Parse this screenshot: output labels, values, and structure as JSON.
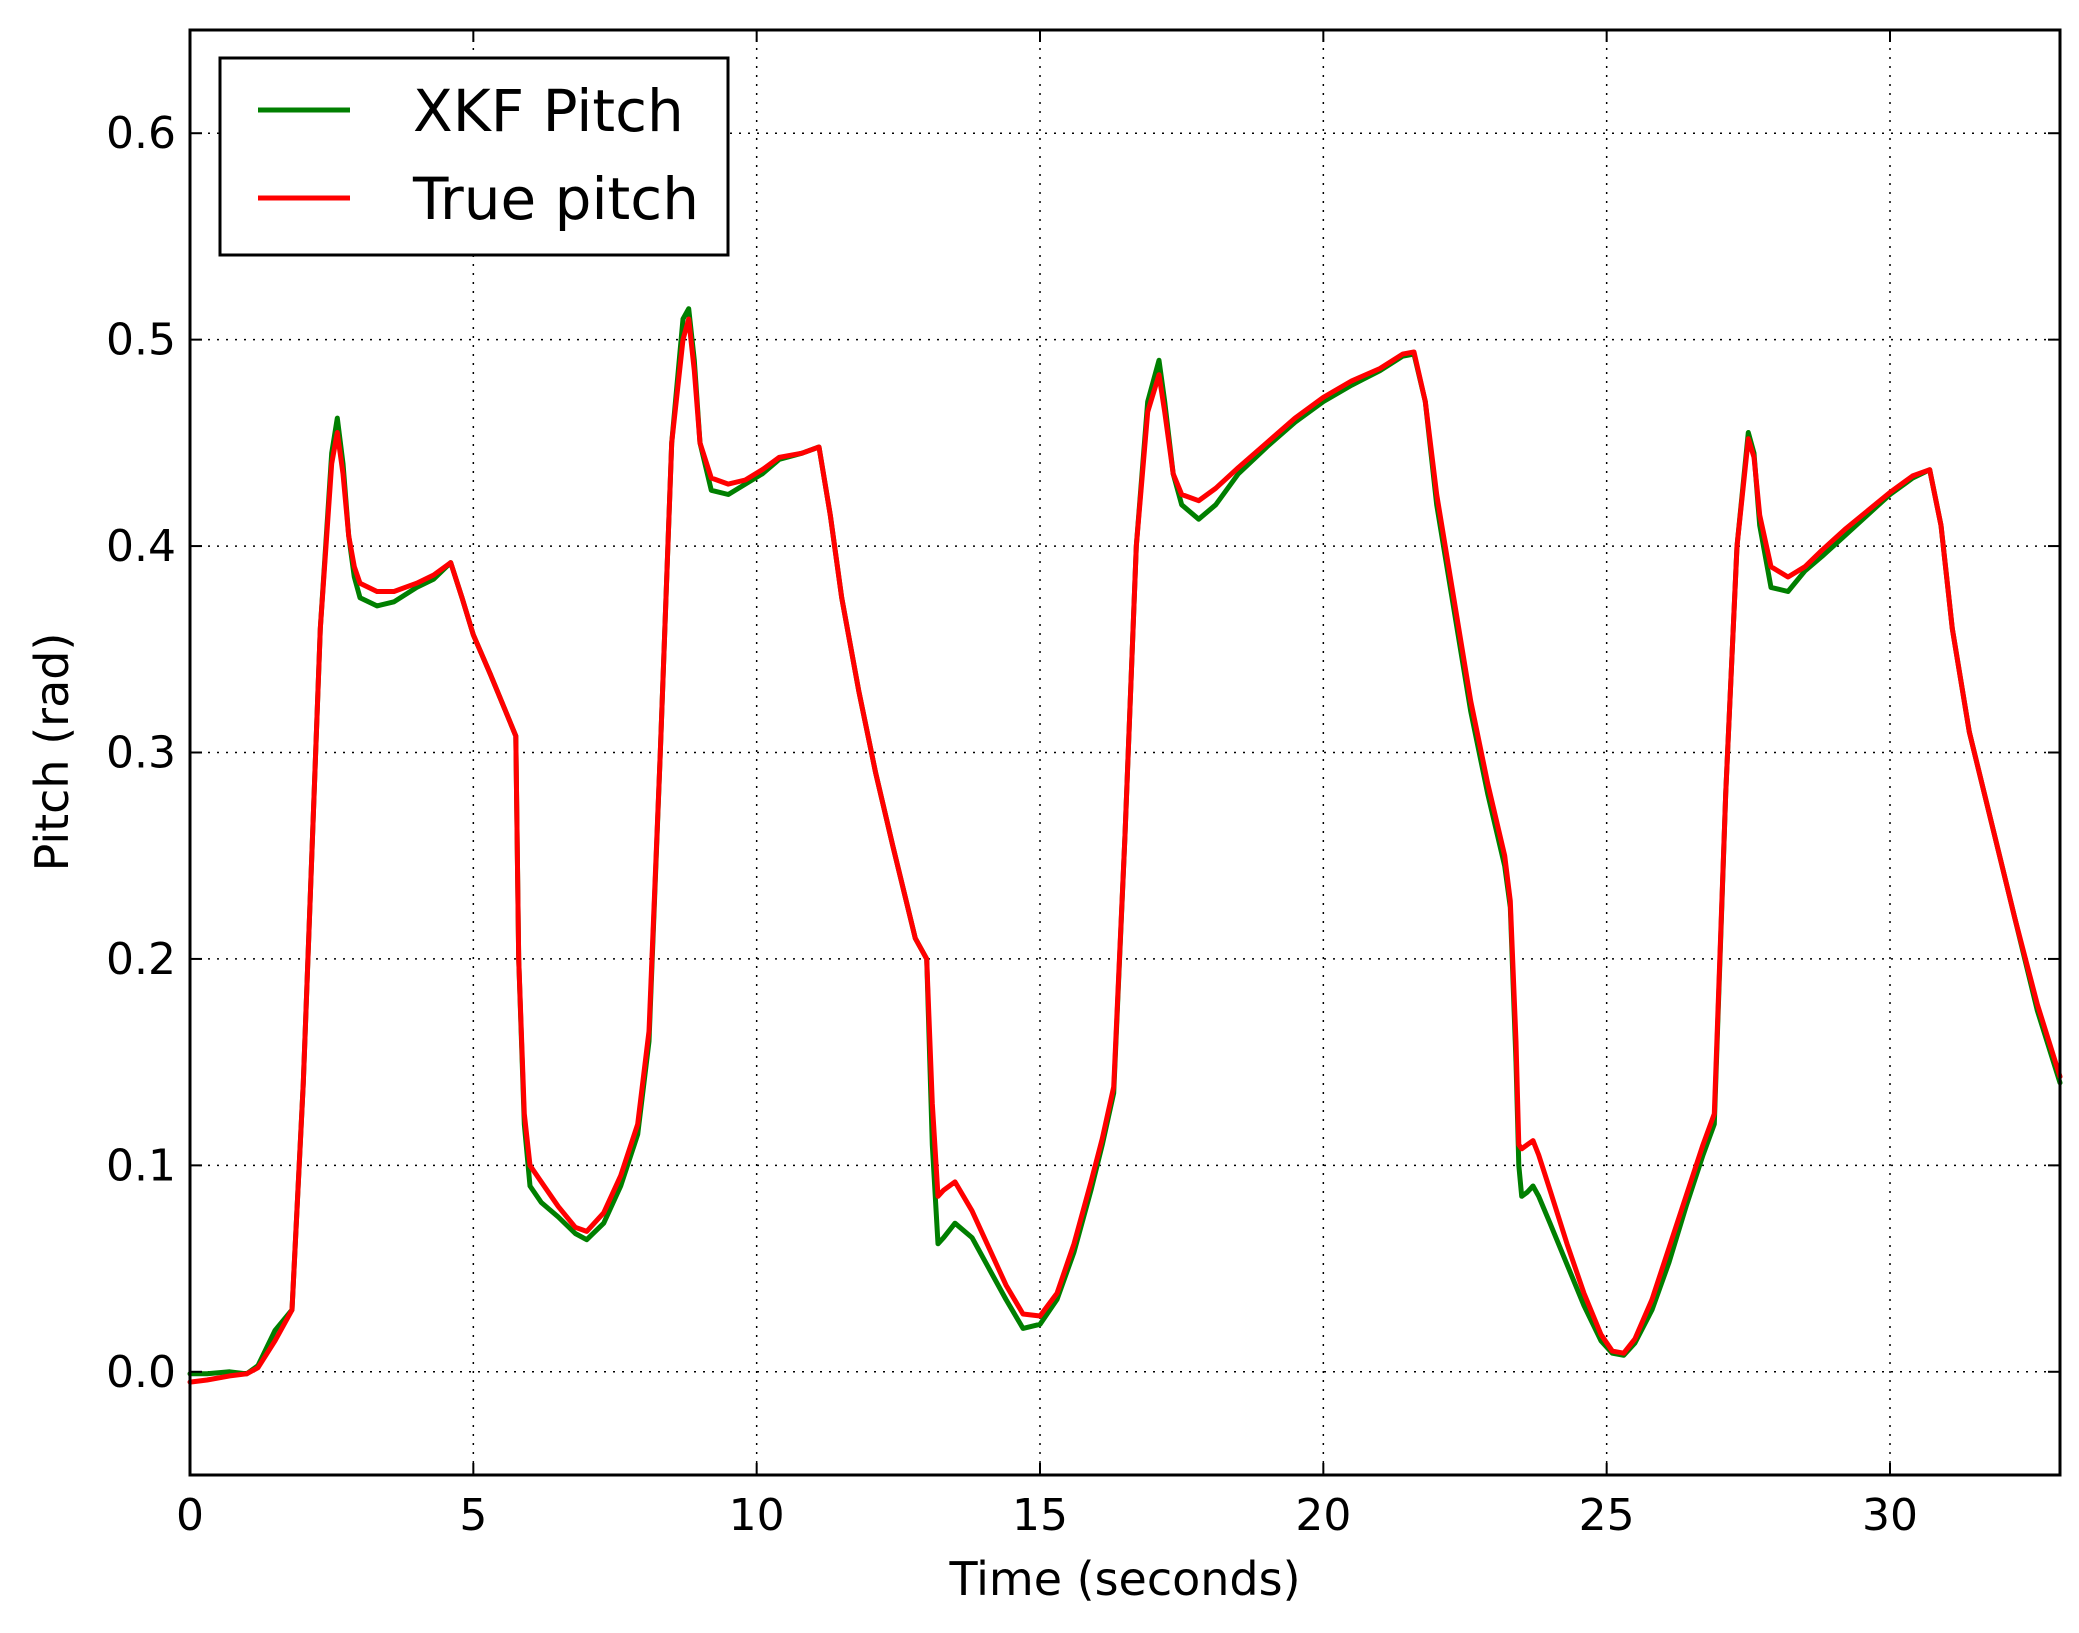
{
  "chart_data": {
    "type": "line",
    "xlabel": "Time (seconds)",
    "ylabel": "Pitch (rad)",
    "xlim": [
      0,
      33
    ],
    "ylim": [
      -0.05,
      0.65
    ],
    "xticks": [
      0,
      5,
      10,
      15,
      20,
      25,
      30
    ],
    "xtick_labels": [
      "0",
      "5",
      "10",
      "15",
      "20",
      "25",
      "30"
    ],
    "yticks": [
      0.0,
      0.1,
      0.2,
      0.3,
      0.4,
      0.5,
      0.6
    ],
    "ytick_labels": [
      "0.0",
      "0.1",
      "0.2",
      "0.3",
      "0.4",
      "0.5",
      "0.6"
    ],
    "grid": true,
    "legend_position": "top-left",
    "series": [
      {
        "name": "XKF Pitch",
        "color": "#007f00",
        "x": [
          0,
          0.3,
          0.7,
          1.0,
          1.2,
          1.5,
          1.8,
          2.0,
          2.3,
          2.5,
          2.6,
          2.7,
          2.8,
          2.9,
          3.0,
          3.3,
          3.6,
          4.0,
          4.3,
          4.6,
          4.8,
          5.0,
          5.3,
          5.6,
          5.75,
          5.8,
          5.9,
          6.0,
          6.2,
          6.5,
          6.8,
          7.0,
          7.3,
          7.6,
          7.9,
          8.1,
          8.3,
          8.5,
          8.7,
          8.8,
          8.9,
          9.0,
          9.2,
          9.5,
          9.8,
          10.1,
          10.4,
          10.8,
          11.1,
          11.3,
          11.5,
          11.8,
          12.1,
          12.4,
          12.8,
          13.0,
          13.1,
          13.2,
          13.3,
          13.5,
          13.8,
          14.1,
          14.4,
          14.7,
          15.0,
          15.3,
          15.6,
          15.9,
          16.1,
          16.3,
          16.5,
          16.7,
          16.9,
          17.1,
          17.2,
          17.35,
          17.5,
          17.8,
          18.1,
          18.5,
          19.0,
          19.5,
          20.0,
          20.5,
          21.0,
          21.4,
          21.6,
          21.8,
          22.0,
          22.3,
          22.6,
          22.9,
          23.2,
          23.3,
          23.4,
          23.45,
          23.5,
          23.6,
          23.7,
          23.8,
          24.0,
          24.3,
          24.6,
          24.9,
          25.1,
          25.3,
          25.5,
          25.8,
          26.1,
          26.4,
          26.7,
          26.9,
          27.1,
          27.3,
          27.5,
          27.6,
          27.7,
          27.9,
          28.2,
          28.5,
          28.8,
          29.2,
          29.6,
          30.0,
          30.4,
          30.7,
          30.9,
          31.1,
          31.4,
          31.8,
          32.2,
          32.6,
          33.0
        ],
        "y": [
          -0.001,
          -0.001,
          0.0,
          -0.001,
          0.003,
          0.02,
          0.03,
          0.14,
          0.36,
          0.445,
          0.462,
          0.44,
          0.405,
          0.385,
          0.375,
          0.371,
          0.373,
          0.38,
          0.384,
          0.392,
          0.375,
          0.357,
          0.338,
          0.318,
          0.308,
          0.2,
          0.12,
          0.09,
          0.082,
          0.075,
          0.067,
          0.064,
          0.072,
          0.09,
          0.115,
          0.16,
          0.3,
          0.45,
          0.51,
          0.515,
          0.49,
          0.45,
          0.427,
          0.425,
          0.43,
          0.435,
          0.442,
          0.445,
          0.448,
          0.415,
          0.375,
          0.33,
          0.29,
          0.255,
          0.21,
          0.2,
          0.11,
          0.062,
          0.065,
          0.072,
          0.065,
          0.05,
          0.035,
          0.021,
          0.023,
          0.035,
          0.058,
          0.088,
          0.11,
          0.135,
          0.26,
          0.4,
          0.47,
          0.49,
          0.47,
          0.435,
          0.42,
          0.413,
          0.42,
          0.435,
          0.448,
          0.46,
          0.47,
          0.478,
          0.485,
          0.492,
          0.493,
          0.47,
          0.42,
          0.37,
          0.32,
          0.28,
          0.245,
          0.225,
          0.15,
          0.1,
          0.085,
          0.087,
          0.09,
          0.085,
          0.072,
          0.052,
          0.032,
          0.015,
          0.009,
          0.008,
          0.014,
          0.03,
          0.053,
          0.08,
          0.105,
          0.12,
          0.28,
          0.4,
          0.455,
          0.445,
          0.41,
          0.38,
          0.378,
          0.388,
          0.395,
          0.405,
          0.415,
          0.425,
          0.433,
          0.437,
          0.41,
          0.36,
          0.31,
          0.265,
          0.22,
          0.175,
          0.14
        ]
      },
      {
        "name": "True pitch",
        "color": "#ff0000",
        "x": [
          0,
          0.3,
          0.7,
          1.0,
          1.2,
          1.5,
          1.8,
          2.0,
          2.3,
          2.5,
          2.6,
          2.7,
          2.8,
          2.9,
          3.0,
          3.3,
          3.6,
          4.0,
          4.3,
          4.6,
          4.8,
          5.0,
          5.3,
          5.6,
          5.75,
          5.8,
          5.9,
          6.0,
          6.2,
          6.5,
          6.8,
          7.0,
          7.3,
          7.6,
          7.9,
          8.1,
          8.3,
          8.5,
          8.7,
          8.8,
          8.9,
          9.0,
          9.2,
          9.5,
          9.8,
          10.1,
          10.4,
          10.8,
          11.1,
          11.3,
          11.5,
          11.8,
          12.1,
          12.4,
          12.8,
          13.0,
          13.1,
          13.2,
          13.3,
          13.5,
          13.8,
          14.1,
          14.4,
          14.7,
          15.0,
          15.3,
          15.6,
          15.9,
          16.1,
          16.3,
          16.5,
          16.7,
          16.9,
          17.1,
          17.2,
          17.35,
          17.5,
          17.8,
          18.1,
          18.5,
          19.0,
          19.5,
          20.0,
          20.5,
          21.0,
          21.4,
          21.6,
          21.8,
          22.0,
          22.3,
          22.6,
          22.9,
          23.2,
          23.3,
          23.4,
          23.45,
          23.5,
          23.6,
          23.7,
          23.8,
          24.0,
          24.3,
          24.6,
          24.9,
          25.1,
          25.3,
          25.5,
          25.8,
          26.1,
          26.4,
          26.7,
          26.9,
          27.1,
          27.3,
          27.5,
          27.6,
          27.7,
          27.9,
          28.2,
          28.5,
          28.8,
          29.2,
          29.6,
          30.0,
          30.4,
          30.7,
          30.9,
          31.1,
          31.4,
          31.8,
          32.2,
          32.6,
          33.0
        ],
        "y": [
          -0.005,
          -0.004,
          -0.002,
          -0.001,
          0.002,
          0.015,
          0.03,
          0.14,
          0.36,
          0.44,
          0.455,
          0.435,
          0.405,
          0.39,
          0.382,
          0.378,
          0.378,
          0.382,
          0.386,
          0.392,
          0.375,
          0.357,
          0.338,
          0.318,
          0.308,
          0.2,
          0.125,
          0.1,
          0.092,
          0.08,
          0.07,
          0.068,
          0.077,
          0.095,
          0.12,
          0.165,
          0.3,
          0.45,
          0.5,
          0.51,
          0.485,
          0.45,
          0.433,
          0.43,
          0.432,
          0.437,
          0.443,
          0.445,
          0.448,
          0.415,
          0.375,
          0.33,
          0.29,
          0.255,
          0.21,
          0.2,
          0.13,
          0.085,
          0.088,
          0.092,
          0.078,
          0.06,
          0.042,
          0.028,
          0.027,
          0.038,
          0.062,
          0.092,
          0.113,
          0.138,
          0.26,
          0.4,
          0.465,
          0.483,
          0.465,
          0.435,
          0.425,
          0.422,
          0.428,
          0.438,
          0.45,
          0.462,
          0.472,
          0.48,
          0.486,
          0.493,
          0.494,
          0.47,
          0.425,
          0.375,
          0.325,
          0.285,
          0.25,
          0.228,
          0.16,
          0.11,
          0.108,
          0.11,
          0.112,
          0.105,
          0.088,
          0.062,
          0.038,
          0.018,
          0.01,
          0.009,
          0.016,
          0.035,
          0.06,
          0.085,
          0.11,
          0.125,
          0.28,
          0.4,
          0.452,
          0.443,
          0.415,
          0.39,
          0.385,
          0.39,
          0.398,
          0.408,
          0.417,
          0.426,
          0.434,
          0.437,
          0.41,
          0.36,
          0.31,
          0.265,
          0.22,
          0.178,
          0.143
        ]
      }
    ]
  }
}
